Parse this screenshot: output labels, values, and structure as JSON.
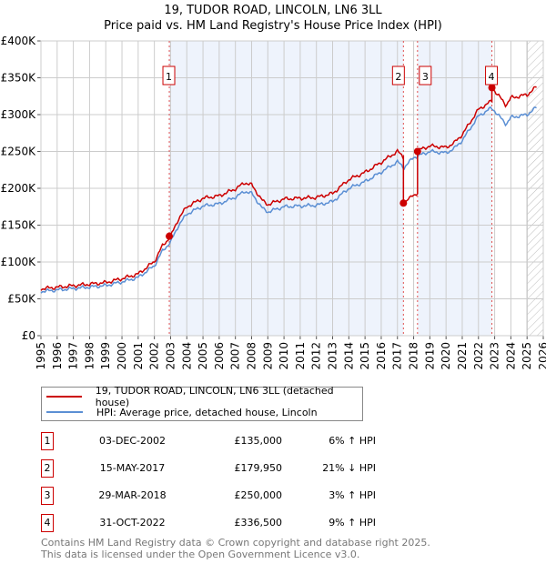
{
  "title": "19, TUDOR ROAD, LINCOLN, LN6 3LL",
  "subtitle": "Price paid vs. HM Land Registry's House Price Index (HPI)",
  "chart_data": {
    "type": "line",
    "title": "19, TUDOR ROAD, LINCOLN, LN6 3LL",
    "subtitle": "Price paid vs. HM Land Registry's House Price Index (HPI)",
    "xlim": [
      1995,
      2026
    ],
    "ylim": [
      0,
      400000
    ],
    "x_ticks": [
      "1995",
      "1996",
      "1997",
      "1998",
      "1999",
      "2000",
      "2001",
      "2002",
      "2003",
      "2004",
      "2005",
      "2006",
      "2007",
      "2008",
      "2009",
      "2010",
      "2011",
      "2012",
      "2013",
      "2014",
      "2015",
      "2016",
      "2017",
      "2018",
      "2019",
      "2020",
      "2021",
      "2022",
      "2023",
      "2024",
      "2025",
      "2026"
    ],
    "y_ticks": [
      {
        "value": 0,
        "label": "£0"
      },
      {
        "value": 50000,
        "label": "£50K"
      },
      {
        "value": 100000,
        "label": "£100K"
      },
      {
        "value": 150000,
        "label": "£150K"
      },
      {
        "value": 200000,
        "label": "£200K"
      },
      {
        "value": 250000,
        "label": "£250K"
      },
      {
        "value": 300000,
        "label": "£300K"
      },
      {
        "value": 350000,
        "label": "£350K"
      },
      {
        "value": 400000,
        "label": "£400K"
      }
    ],
    "grid": true,
    "projection_start": 2025.0,
    "colors": {
      "property": "#cc0000",
      "hpi": "#5b8fd4",
      "shade": "#eef3fc"
    },
    "hpi_series": {
      "name": "HPI: Average price, detached house, Lincoln",
      "x": [
        1995,
        1996,
        1997,
        1998,
        1999,
        2000,
        2001,
        2002,
        2002.5,
        2003,
        2003.5,
        2004,
        2005,
        2006,
        2007,
        2007.6,
        2008,
        2008.7,
        2009,
        2010,
        2011,
        2012,
        2013,
        2014,
        2015,
        2016,
        2017,
        2017.4,
        2018,
        2019,
        2020,
        2020.5,
        2021,
        2022,
        2022.8,
        2023,
        2023.7,
        2024,
        2025,
        2025.6
      ],
      "y": [
        60000,
        62000,
        64000,
        66000,
        68000,
        73000,
        79000,
        95000,
        115000,
        127000,
        150000,
        165000,
        176000,
        179000,
        188000,
        196000,
        193000,
        172000,
        168000,
        175000,
        176000,
        177000,
        182000,
        200000,
        209000,
        222000,
        236000,
        228000,
        242000,
        250000,
        248000,
        254000,
        265000,
        298000,
        309000,
        305000,
        287000,
        296000,
        300000,
        310000
      ]
    },
    "property_series": {
      "name": "19, TUDOR ROAD, LINCOLN, LN6 3LL (detached house)"
    },
    "sales": [
      {
        "id": "1",
        "x": 2002.92,
        "date": "03-DEC-2002",
        "price": 135000,
        "price_label": "£135,000",
        "hpi_diff": "6% ↑ HPI",
        "ratio": 1.06
      },
      {
        "id": "2",
        "x": 2017.37,
        "date": "15-MAY-2017",
        "price": 179950,
        "price_label": "£179,950",
        "hpi_diff": "21% ↓ HPI",
        "ratio": 0.79
      },
      {
        "id": "3",
        "x": 2018.24,
        "date": "29-MAR-2018",
        "price": 250000,
        "price_label": "£250,000",
        "hpi_diff": "3% ↑ HPI",
        "ratio": 1.03
      },
      {
        "id": "4",
        "x": 2022.83,
        "date": "31-OCT-2022",
        "price": 336500,
        "price_label": "£336,500",
        "hpi_diff": "9% ↑ HPI",
        "ratio": 1.09
      }
    ]
  },
  "legend": {
    "property": "19, TUDOR ROAD, LINCOLN, LN6 3LL (detached house)",
    "hpi": "HPI: Average price, detached house, Lincoln"
  },
  "footer": {
    "line1": "Contains HM Land Registry data © Crown copyright and database right 2025.",
    "line2": "This data is licensed under the Open Government Licence v3.0."
  }
}
